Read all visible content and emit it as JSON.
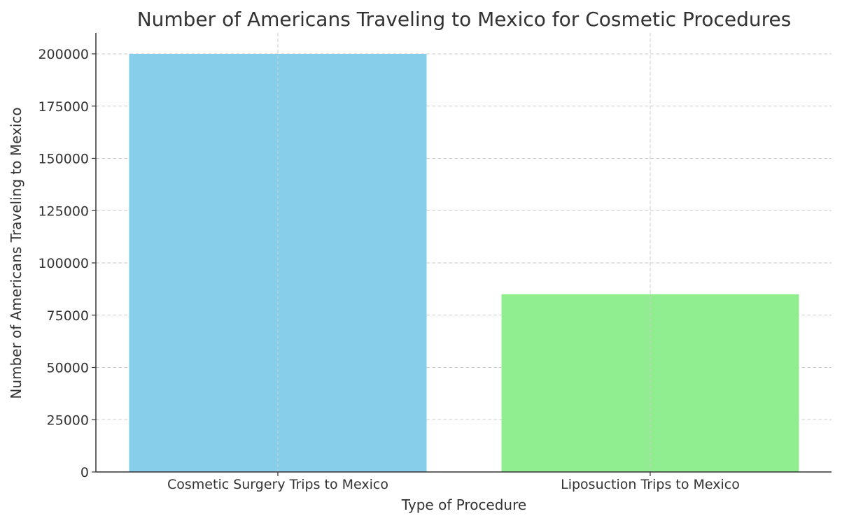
{
  "chart_data": {
    "type": "bar",
    "title": "Number of Americans Traveling to Mexico for Cosmetic Procedures",
    "xlabel": "Type of Procedure",
    "ylabel": "Number of Americans Traveling to Mexico",
    "categories": [
      "Cosmetic Surgery Trips to Mexico",
      "Liposuction Trips to Mexico"
    ],
    "values": [
      200000,
      85000
    ],
    "colors": [
      "#87ceeb",
      "#90ee90"
    ],
    "ylim": [
      0,
      210000
    ],
    "yticks": [
      0,
      25000,
      50000,
      75000,
      100000,
      125000,
      150000,
      175000,
      200000
    ],
    "ytick_labels": [
      "0",
      "25000",
      "50000",
      "75000",
      "100000",
      "125000",
      "150000",
      "175000",
      "200000"
    ],
    "grid": true,
    "legend": null
  }
}
